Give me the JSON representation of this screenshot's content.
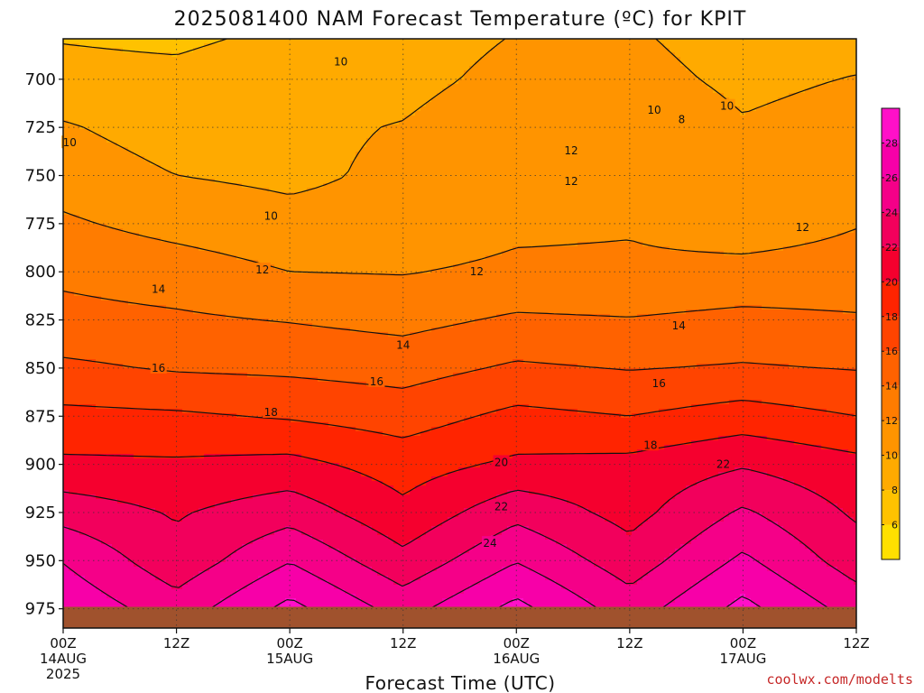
{
  "title": "2025081400 NAM Forecast Temperature (ºC) for KPIT",
  "credit": "coolwx.com/modelts",
  "chart_data": {
    "type": "heatmap",
    "title": "2025081400 NAM Forecast Temperature (ºC) for KPIT",
    "xlabel": "Forecast Time (UTC)",
    "ylabel": "",
    "x_ticks": [
      {
        "hour": 0,
        "label": "00Z",
        "date": "14AUG",
        "year": "2025"
      },
      {
        "hour": 12,
        "label": "12Z",
        "date": "",
        "year": ""
      },
      {
        "hour": 24,
        "label": "00Z",
        "date": "15AUG",
        "year": ""
      },
      {
        "hour": 36,
        "label": "12Z",
        "date": "",
        "year": ""
      },
      {
        "hour": 48,
        "label": "00Z",
        "date": "16AUG",
        "year": ""
      },
      {
        "hour": 60,
        "label": "12Z",
        "date": "",
        "year": ""
      },
      {
        "hour": 72,
        "label": "00Z",
        "date": "17AUG",
        "year": ""
      },
      {
        "hour": 84,
        "label": "12Z",
        "date": "",
        "year": ""
      }
    ],
    "xlim_hours": [
      0,
      84
    ],
    "y_ticks": [
      700,
      725,
      750,
      775,
      800,
      825,
      850,
      875,
      900,
      925,
      950,
      975
    ],
    "ylim": [
      679,
      985
    ],
    "grid": true,
    "colorbar": {
      "levels": [
        4,
        6,
        8,
        10,
        12,
        14,
        16,
        18,
        20,
        22,
        24,
        26,
        28,
        30
      ],
      "labels": [
        6,
        8,
        10,
        12,
        14,
        16,
        18,
        20,
        22,
        24,
        26,
        28
      ],
      "colors": [
        "#ffe000",
        "#ffc200",
        "#ffaa00",
        "#ff9400",
        "#ff7c00",
        "#ff6200",
        "#ff4400",
        "#ff2400",
        "#f5002e",
        "#f2005c",
        "#f50088",
        "#f700a8",
        "#ff10c8"
      ]
    },
    "levels_profile": [
      679,
      700,
      725,
      750,
      775,
      800,
      825,
      850,
      875,
      900,
      925,
      950,
      975,
      985
    ],
    "times": [
      0,
      12,
      24,
      36,
      48,
      60,
      72,
      84
    ],
    "temperature": [
      [
        7.9,
        7.6,
        8.5,
        9.1,
        10.1,
        10.3,
        9.0,
        9.2
      ],
      [
        8.7,
        8.6,
        9.4,
        9.4,
        10.6,
        10.8,
        9.5,
        10.1
      ],
      [
        10.2,
        9.1,
        9.6,
        10.1,
        11.4,
        11.8,
        10.2,
        10.9
      ],
      [
        11.1,
        10.0,
        9.6,
        10.4,
        11.7,
        12.0,
        10.3,
        11.1
      ],
      [
        12.3,
        11.3,
        10.6,
        10.7,
        11.6,
        11.8,
        10.8,
        11.9
      ],
      [
        13.6,
        13.0,
        12.0,
        11.9,
        12.4,
        12.4,
        12.7,
        12.9
      ],
      [
        14.6,
        14.3,
        13.9,
        13.4,
        14.3,
        14.1,
        14.5,
        14.2
      ],
      [
        16.4,
        15.8,
        15.6,
        15.2,
        16.3,
        15.9,
        16.2,
        15.9
      ],
      [
        18.5,
        18.3,
        17.8,
        17.1,
        18.5,
        18.0,
        18.9,
        18.0
      ],
      [
        20.4,
        20.3,
        20.6,
        19.1,
        20.4,
        20.6,
        21.8,
        20.6
      ],
      [
        23.2,
        21.8,
        23.2,
        20.5,
        23.4,
        21.3,
        24.3,
        21.7
      ],
      [
        25.9,
        22.7,
        25.9,
        22.6,
        25.9,
        22.9,
        26.4,
        23.0
      ],
      [
        27.6,
        24.9,
        28.6,
        25.2,
        28.6,
        25.0,
        28.6,
        25.2
      ],
      [
        28.0,
        25.4,
        29.2,
        25.6,
        29.2,
        25.4,
        29.0,
        25.5
      ]
    ],
    "surface_pressure_hpa": 974,
    "contour_labels": [
      {
        "value": "10",
        "hour": 29.4,
        "level": 691
      },
      {
        "value": "10",
        "hour": 0.7,
        "level": 733
      },
      {
        "value": "10",
        "hour": 62.6,
        "level": 716
      },
      {
        "value": "8",
        "hour": 65.5,
        "level": 721
      },
      {
        "value": "10",
        "hour": 70.3,
        "level": 714
      },
      {
        "value": "12",
        "hour": 53.8,
        "level": 737
      },
      {
        "value": "12",
        "hour": 53.8,
        "level": 753
      },
      {
        "value": "10",
        "hour": 22.0,
        "level": 771
      },
      {
        "value": "12",
        "hour": 21.1,
        "level": 799
      },
      {
        "value": "12",
        "hour": 43.8,
        "level": 800
      },
      {
        "value": "12",
        "hour": 78.3,
        "level": 777
      },
      {
        "value": "14",
        "hour": 10.1,
        "level": 809
      },
      {
        "value": "14",
        "hour": 36.0,
        "level": 838
      },
      {
        "value": "14",
        "hour": 65.2,
        "level": 828
      },
      {
        "value": "16",
        "hour": 10.1,
        "level": 850
      },
      {
        "value": "16",
        "hour": 33.2,
        "level": 857
      },
      {
        "value": "16",
        "hour": 63.1,
        "level": 858
      },
      {
        "value": "18",
        "hour": 22.0,
        "level": 873
      },
      {
        "value": "18",
        "hour": 62.2,
        "level": 890
      },
      {
        "value": "20",
        "hour": 46.4,
        "level": 899
      },
      {
        "value": "22",
        "hour": 46.4,
        "level": 922
      },
      {
        "value": "22",
        "hour": 69.9,
        "level": 900
      },
      {
        "value": "24",
        "hour": 45.2,
        "level": 941
      }
    ]
  }
}
